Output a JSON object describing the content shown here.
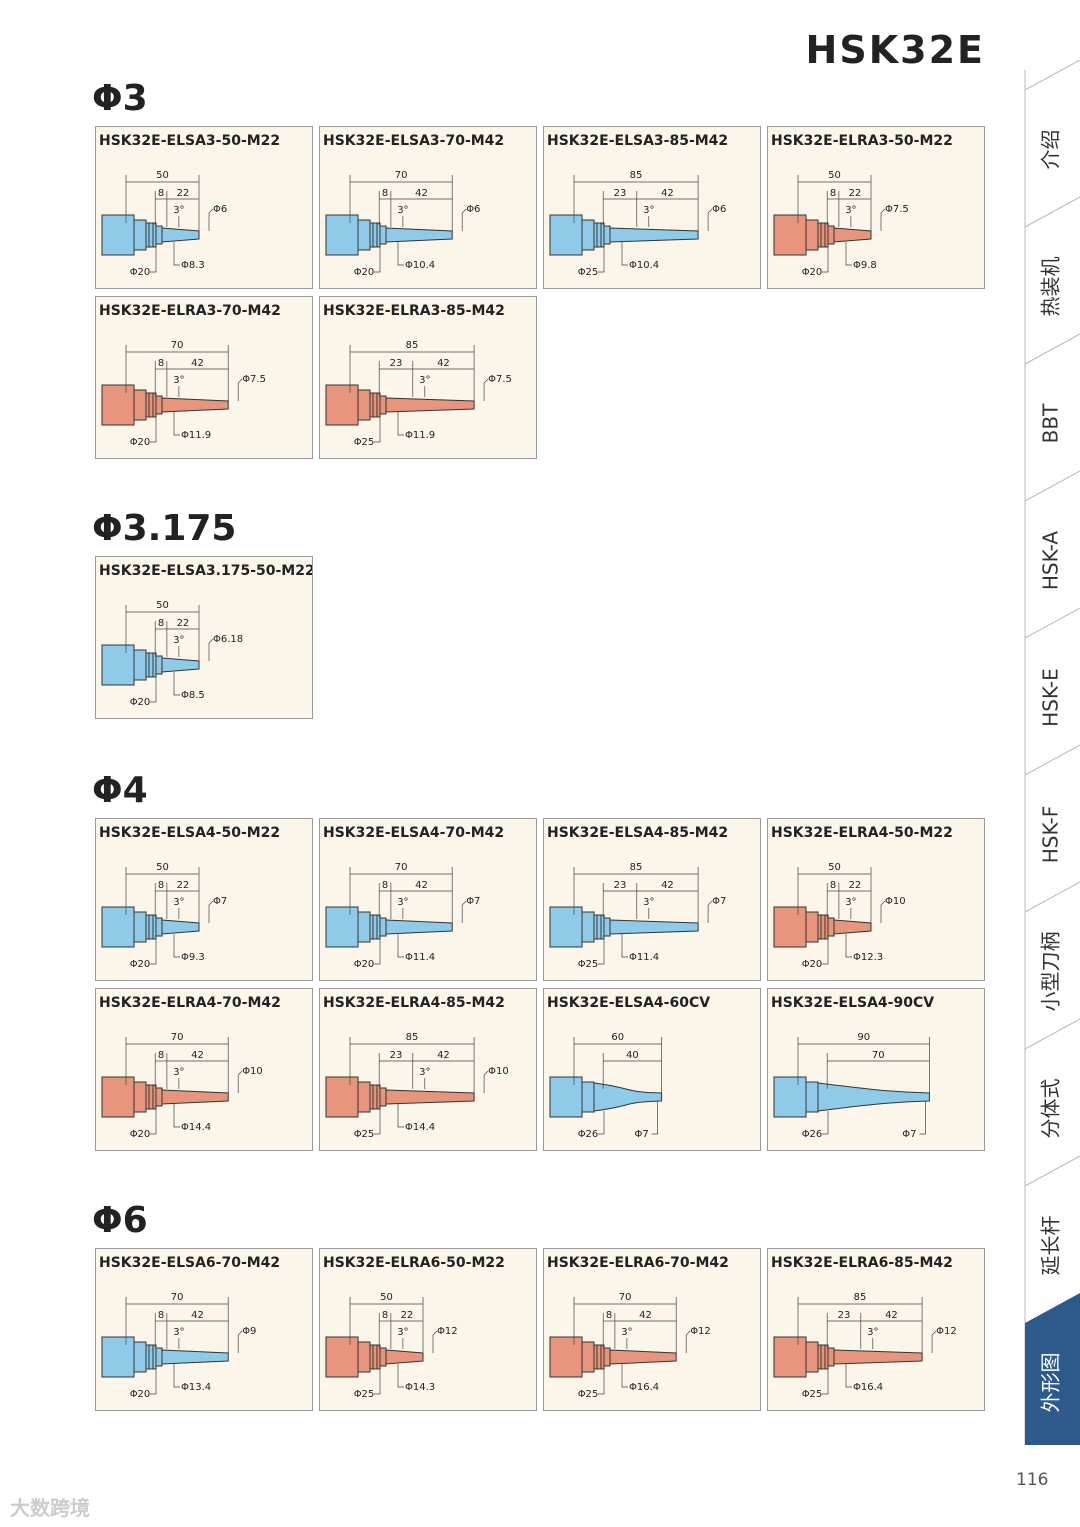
{
  "header": {
    "title": "HSK32E"
  },
  "sections": [
    {
      "heading": "Φ3",
      "cards": [
        {
          "title": "HSK32E-ELSA3-50-M22",
          "color": "#8fcbe8",
          "length": "50",
          "seg_a": "8",
          "seg_b": "22",
          "angle": "3°",
          "tip": "Φ6",
          "root": "Φ8.3",
          "flange": "Φ20"
        },
        {
          "title": "HSK32E-ELSA3-70-M42",
          "color": "#8fcbe8",
          "length": "70",
          "seg_a": "8",
          "seg_b": "42",
          "angle": "3°",
          "tip": "Φ6",
          "root": "Φ10.4",
          "flange": "Φ20"
        },
        {
          "title": "HSK32E-ELSA3-85-M42",
          "color": "#8fcbe8",
          "length": "85",
          "seg_a": "23",
          "seg_b": "42",
          "angle": "3°",
          "tip": "Φ6",
          "root": "Φ10.4",
          "flange": "Φ25"
        },
        {
          "title": "HSK32E-ELRA3-50-M22",
          "color": "#e8957d",
          "length": "50",
          "seg_a": "8",
          "seg_b": "22",
          "angle": "3°",
          "tip": "Φ7.5",
          "root": "Φ9.8",
          "flange": "Φ20"
        },
        {
          "title": "HSK32E-ELRA3-70-M42",
          "color": "#e8957d",
          "length": "70",
          "seg_a": "8",
          "seg_b": "42",
          "angle": "3°",
          "tip": "Φ7.5",
          "root": "Φ11.9",
          "flange": "Φ20"
        },
        {
          "title": "HSK32E-ELRA3-85-M42",
          "color": "#e8957d",
          "length": "85",
          "seg_a": "23",
          "seg_b": "42",
          "angle": "3°",
          "tip": "Φ7.5",
          "root": "Φ11.9",
          "flange": "Φ25"
        }
      ]
    },
    {
      "heading": "Φ3.175",
      "cards": [
        {
          "title": "HSK32E-ELSA3.175-50-M22",
          "color": "#8fcbe8",
          "length": "50",
          "seg_a": "8",
          "seg_b": "22",
          "angle": "3°",
          "tip": "Φ6.18",
          "root": "Φ8.5",
          "flange": "Φ20"
        }
      ]
    },
    {
      "heading": "Φ4",
      "cards": [
        {
          "title": "HSK32E-ELSA4-50-M22",
          "color": "#8fcbe8",
          "length": "50",
          "seg_a": "8",
          "seg_b": "22",
          "angle": "3°",
          "tip": "Φ7",
          "root": "Φ9.3",
          "flange": "Φ20"
        },
        {
          "title": "HSK32E-ELSA4-70-M42",
          "color": "#8fcbe8",
          "length": "70",
          "seg_a": "8",
          "seg_b": "42",
          "angle": "3°",
          "tip": "Φ7",
          "root": "Φ11.4",
          "flange": "Φ20"
        },
        {
          "title": "HSK32E-ELSA4-85-M42",
          "color": "#8fcbe8",
          "length": "85",
          "seg_a": "23",
          "seg_b": "42",
          "angle": "3°",
          "tip": "Φ7",
          "root": "Φ11.4",
          "flange": "Φ25"
        },
        {
          "title": "HSK32E-ELRA4-50-M22",
          "color": "#e8957d",
          "length": "50",
          "seg_a": "8",
          "seg_b": "22",
          "angle": "3°",
          "tip": "Φ10",
          "root": "Φ12.3",
          "flange": "Φ20"
        },
        {
          "title": "HSK32E-ELRA4-70-M42",
          "color": "#e8957d",
          "length": "70",
          "seg_a": "8",
          "seg_b": "42",
          "angle": "3°",
          "tip": "Φ10",
          "root": "Φ14.4",
          "flange": "Φ20"
        },
        {
          "title": "HSK32E-ELRA4-85-M42",
          "color": "#e8957d",
          "length": "85",
          "seg_a": "23",
          "seg_b": "42",
          "angle": "3°",
          "tip": "Φ10",
          "root": "Φ14.4",
          "flange": "Φ25"
        },
        {
          "title": "HSK32E-ELSA4-60CV",
          "color": "#8fcbe8",
          "length": "60",
          "seg_b": "40",
          "tip": "Φ7",
          "flange": "Φ26"
        },
        {
          "title": "HSK32E-ELSA4-90CV",
          "color": "#8fcbe8",
          "length": "90",
          "seg_b": "70",
          "tip": "Φ7",
          "flange": "Φ26"
        }
      ]
    },
    {
      "heading": "Φ6",
      "cards": [
        {
          "title": "HSK32E-ELSA6-70-M42",
          "color": "#8fcbe8",
          "length": "70",
          "seg_a": "8",
          "seg_b": "42",
          "angle": "3°",
          "tip": "Φ9",
          "root": "Φ13.4",
          "flange": "Φ20"
        },
        {
          "title": "HSK32E-ELRA6-50-M22",
          "color": "#e8957d",
          "length": "50",
          "seg_a": "8",
          "seg_b": "22",
          "angle": "3°",
          "tip": "Φ12",
          "root": "Φ14.3",
          "flange": "Φ25"
        },
        {
          "title": "HSK32E-ELRA6-70-M42",
          "color": "#e8957d",
          "length": "70",
          "seg_a": "8",
          "seg_b": "42",
          "angle": "3°",
          "tip": "Φ12",
          "root": "Φ16.4",
          "flange": "Φ25"
        },
        {
          "title": "HSK32E-ELRA6-85-M42",
          "color": "#e8957d",
          "length": "85",
          "seg_a": "23",
          "seg_b": "42",
          "angle": "3°",
          "tip": "Φ12",
          "root": "Φ16.4",
          "flange": "Φ25"
        }
      ]
    }
  ],
  "side_tabs": [
    "介绍",
    "热装机",
    "BBT",
    "HSK-A",
    "HSK-E",
    "HSK-F",
    "小型刀柄",
    "分体式",
    "延长杆",
    "外形图"
  ],
  "active_tab": 9,
  "page_number": "116",
  "watermark": "大数跨境"
}
